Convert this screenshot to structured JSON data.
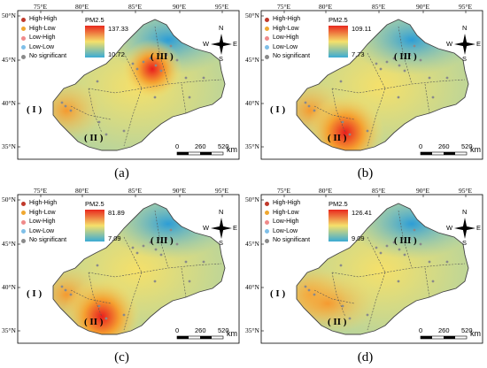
{
  "panels": [
    {
      "caption": "(a)",
      "cbar_title": "PM2.5",
      "cbar_max": "137.33",
      "cbar_min": "10.72",
      "hotspot": "III"
    },
    {
      "caption": "(b)",
      "cbar_title": "PM2.5",
      "cbar_max": "109.11",
      "cbar_min": "7.73",
      "hotspot": "II"
    },
    {
      "caption": "(c)",
      "cbar_title": "PM2.5",
      "cbar_max": "81.89",
      "cbar_min": "7.09",
      "hotspot": "II"
    },
    {
      "caption": "(d)",
      "cbar_title": "PM2.5",
      "cbar_max": "126.41",
      "cbar_min": "9.09",
      "hotspot": "none"
    }
  ],
  "legend": [
    {
      "label": "High-High",
      "color": "#c0392b"
    },
    {
      "label": "High-Low",
      "color": "#f0a830"
    },
    {
      "label": "Low-High",
      "color": "#f08a8a"
    },
    {
      "label": "Low-Low",
      "color": "#7fbfe8"
    },
    {
      "label": "No significant",
      "color": "#8a8a8a"
    }
  ],
  "longitudes": [
    "75°E",
    "80°E",
    "85°E",
    "90°E",
    "95°E"
  ],
  "latitudes": [
    "50°N",
    "45°N",
    "40°N",
    "35°N"
  ],
  "regions": [
    "( I )",
    "( II )",
    "( III )"
  ],
  "compass": {
    "n": "N",
    "s": "S",
    "e": "E",
    "w": "W"
  },
  "scale": {
    "ticks": [
      "0",
      "260",
      "520"
    ],
    "unit": "km"
  },
  "colors": {
    "high": "#e8281e",
    "mid": "#f5e06a",
    "low": "#3aaad4"
  }
}
